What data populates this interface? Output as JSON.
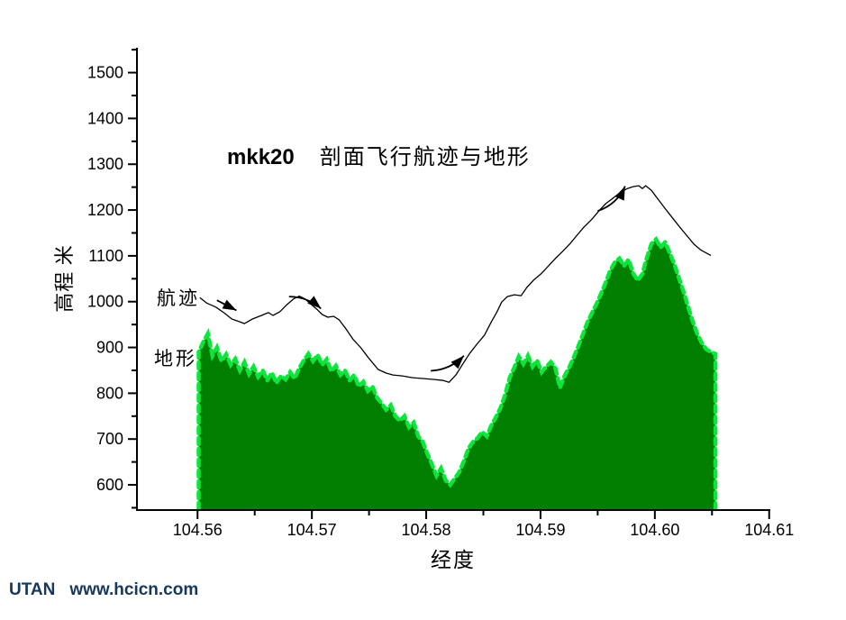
{
  "title": {
    "prefix": "mkk20",
    "main": "剖面飞行航迹与地形"
  },
  "watermark": {
    "brand": "UTAN",
    "site": "www.hcicn.com"
  },
  "chart_data": {
    "type": "area+line",
    "title": "mkk20 剖面飞行航迹与地形",
    "xlabel": "经度",
    "ylabel": "高程 米",
    "grid": false,
    "legend_position": "inline-annotations",
    "annotations": {
      "path_label": "航迹",
      "terrain_label": "地形"
    },
    "x_axis": {
      "min": 104.5547,
      "max": 104.6101,
      "major": [
        104.56,
        104.57,
        104.58,
        104.59,
        104.6,
        104.61
      ],
      "major_labels": [
        "104.56",
        "104.57",
        "104.58",
        "104.59",
        "104.60",
        "104.61"
      ],
      "minor": [
        104.565,
        104.575,
        104.585,
        104.595,
        104.605
      ]
    },
    "y_axis": {
      "min": 545,
      "max": 1570,
      "major": [
        600,
        700,
        800,
        900,
        1000,
        1100,
        1200,
        1300,
        1400,
        1500
      ],
      "major_labels": [
        "600",
        "700",
        "800",
        "900",
        "1000",
        "1100",
        "1200",
        "1300",
        "1400",
        "1500"
      ],
      "minor": [
        550,
        650,
        750,
        850,
        950,
        1050,
        1150,
        1250,
        1350,
        1450,
        1550
      ]
    },
    "colors": {
      "terrain_fill": "#007f00",
      "terrain_edge": "#0ce63c",
      "flight_path": "#000000",
      "watermark_blue": "#17375d"
    },
    "series": [
      {
        "name": "地形",
        "type": "area",
        "lon_start": 104.5601,
        "lon_step": 0.0004,
        "elevations": [
          890,
          912,
          930,
          882,
          900,
          870,
          885,
          862,
          875,
          850,
          868,
          842,
          858,
          836,
          850,
          828,
          845,
          822,
          838,
          830,
          846,
          832,
          855,
          872,
          886,
          870,
          884,
          862,
          874,
          848,
          860,
          840,
          850,
          828,
          840,
          815,
          825,
          805,
          815,
          790,
          778,
          764,
          774,
          750,
          740,
          750,
          726,
          736,
          706,
          694,
          668,
          645,
          620,
          636,
          610,
          600,
          614,
          628,
          652,
          680,
          694,
          702,
          716,
          706,
          730,
          748,
          768,
          796,
          834,
          856,
          880,
          864,
          882,
          858,
          872,
          846,
          858,
          868,
          855,
          812,
          838,
          856,
          878,
          902,
          928,
          955,
          975,
          995,
          1018,
          1042,
          1068,
          1086,
          1094,
          1078,
          1092,
          1062,
          1046,
          1060,
          1096,
          1126,
          1136,
          1118,
          1130,
          1106,
          1082,
          1052,
          1022,
          990,
          958,
          930,
          910,
          896,
          890,
          886
        ]
      },
      {
        "name": "航迹",
        "type": "line",
        "points": [
          [
            104.5602,
            1009
          ],
          [
            104.5608,
            997
          ],
          [
            104.5616,
            988
          ],
          [
            104.5624,
            974
          ],
          [
            104.563,
            962
          ],
          [
            104.5637,
            956
          ],
          [
            104.5641,
            952
          ],
          [
            104.5648,
            962
          ],
          [
            104.5656,
            970
          ],
          [
            104.5662,
            976
          ],
          [
            104.5666,
            970
          ],
          [
            104.5672,
            978
          ],
          [
            104.5678,
            993
          ],
          [
            104.5684,
            1006
          ],
          [
            104.5689,
            1012
          ],
          [
            104.5694,
            1006
          ],
          [
            104.5698,
            997
          ],
          [
            104.5705,
            982
          ],
          [
            104.5709,
            972
          ],
          [
            104.5714,
            966
          ],
          [
            104.5719,
            968
          ],
          [
            104.5724,
            960
          ],
          [
            104.573,
            940
          ],
          [
            104.5736,
            918
          ],
          [
            104.5743,
            899
          ],
          [
            104.5749,
            879
          ],
          [
            104.5754,
            864
          ],
          [
            104.5758,
            852
          ],
          [
            104.5765,
            844
          ],
          [
            104.5771,
            840
          ],
          [
            104.5779,
            838
          ],
          [
            104.5788,
            834
          ],
          [
            104.5798,
            832
          ],
          [
            104.5807,
            830
          ],
          [
            104.5815,
            828
          ],
          [
            104.582,
            824
          ],
          [
            104.5826,
            840
          ],
          [
            104.5832,
            864
          ],
          [
            104.5838,
            887
          ],
          [
            104.5845,
            909
          ],
          [
            104.5851,
            927
          ],
          [
            104.5857,
            956
          ],
          [
            104.5862,
            978
          ],
          [
            104.5866,
            999
          ],
          [
            104.5871,
            1011
          ],
          [
            104.5877,
            1015
          ],
          [
            104.5883,
            1013
          ],
          [
            104.5888,
            1031
          ],
          [
            104.5894,
            1047
          ],
          [
            104.5901,
            1062
          ],
          [
            104.5907,
            1078
          ],
          [
            104.5913,
            1094
          ],
          [
            104.5919,
            1109
          ],
          [
            104.5926,
            1127
          ],
          [
            104.5932,
            1145
          ],
          [
            104.5938,
            1163
          ],
          [
            104.5945,
            1180
          ],
          [
            104.5951,
            1198
          ],
          [
            104.5957,
            1214
          ],
          [
            104.5964,
            1227
          ],
          [
            104.597,
            1239
          ],
          [
            104.5976,
            1247
          ],
          [
            104.5981,
            1251
          ],
          [
            104.5986,
            1253
          ],
          [
            104.5989,
            1247
          ],
          [
            104.5992,
            1253
          ],
          [
            104.5997,
            1243
          ],
          [
            104.6003,
            1223
          ],
          [
            104.6009,
            1203
          ],
          [
            104.6016,
            1181
          ],
          [
            104.6022,
            1162
          ],
          [
            104.6028,
            1144
          ],
          [
            104.6034,
            1126
          ],
          [
            104.604,
            1113
          ],
          [
            104.6046,
            1105
          ],
          [
            104.6049,
            1101
          ]
        ]
      }
    ],
    "arrows": [
      {
        "tail": [
          104.5617,
          1003
        ],
        "tip": [
          104.5634,
          981
        ],
        "bend": 0
      },
      {
        "tail": [
          104.568,
          1011
        ],
        "tip": [
          104.5708,
          985
        ],
        "bend": -7
      },
      {
        "tail": [
          104.5804,
          849
        ],
        "tip": [
          104.5833,
          882
        ],
        "bend": 8
      },
      {
        "tail": [
          104.595,
          1198
        ],
        "tip": [
          104.5974,
          1252
        ],
        "bend": 9
      }
    ]
  }
}
